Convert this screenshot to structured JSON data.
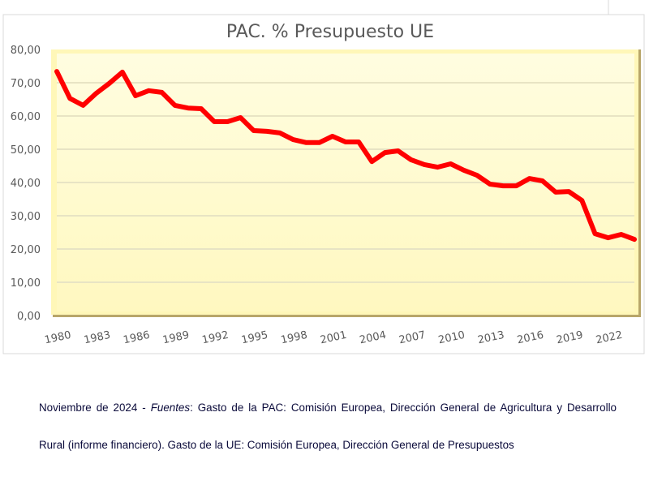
{
  "chart_data": {
    "type": "line",
    "title": "PAC. % Presupuesto UE",
    "xlabel": "",
    "ylabel": "",
    "ylim": [
      0,
      80
    ],
    "y_ticks": [
      "0,00",
      "10,00",
      "20,00",
      "30,00",
      "40,00",
      "50,00",
      "60,00",
      "70,00",
      "80,00"
    ],
    "x_tick_labels": [
      "1980",
      "1983",
      "1986",
      "1989",
      "1992",
      "1995",
      "1998",
      "2001",
      "2004",
      "2007",
      "2010",
      "2013",
      "2016",
      "2019",
      "2022"
    ],
    "grid": true,
    "legend": "none",
    "series": [
      {
        "name": "PAC % Presupuesto UE",
        "color": "#ff0000",
        "x": [
          1980,
          1981,
          1982,
          1983,
          1984,
          1985,
          1986,
          1987,
          1988,
          1989,
          1990,
          1991,
          1992,
          1993,
          1994,
          1995,
          1996,
          1997,
          1998,
          1999,
          2000,
          2001,
          2002,
          2003,
          2004,
          2005,
          2006,
          2007,
          2008,
          2009,
          2010,
          2011,
          2012,
          2013,
          2014,
          2015,
          2016,
          2017,
          2018,
          2019,
          2020,
          2021,
          2022,
          2023,
          2024
        ],
        "values": [
          73.4,
          65.3,
          63.2,
          66.8,
          69.8,
          73.2,
          66.1,
          67.6,
          67.1,
          63.2,
          62.4,
          62.2,
          58.3,
          58.3,
          59.5,
          55.6,
          55.4,
          54.9,
          52.9,
          52.0,
          52.0,
          53.9,
          52.2,
          52.2,
          46.3,
          49.0,
          49.5,
          46.8,
          45.4,
          44.6,
          45.6,
          43.7,
          42.2,
          39.5,
          39.0,
          39.0,
          41.2,
          40.5,
          37.1,
          37.3,
          34.6,
          24.6,
          23.4,
          24.4,
          22.9
        ]
      }
    ],
    "colors": {
      "plot_background": "#fffbcf",
      "grid": "#e8e4c4",
      "axis_text": "#595959"
    }
  },
  "caption": {
    "date": "Noviembre de 2024 - ",
    "sources_label": "Fuentes",
    "text": ": Gasto de la PAC: Comisión Europea, Dirección General de Agricultura y Desarrollo Rural (informe financiero). Gasto de la UE: Comisión Europea, Dirección General de Presupuestos"
  }
}
